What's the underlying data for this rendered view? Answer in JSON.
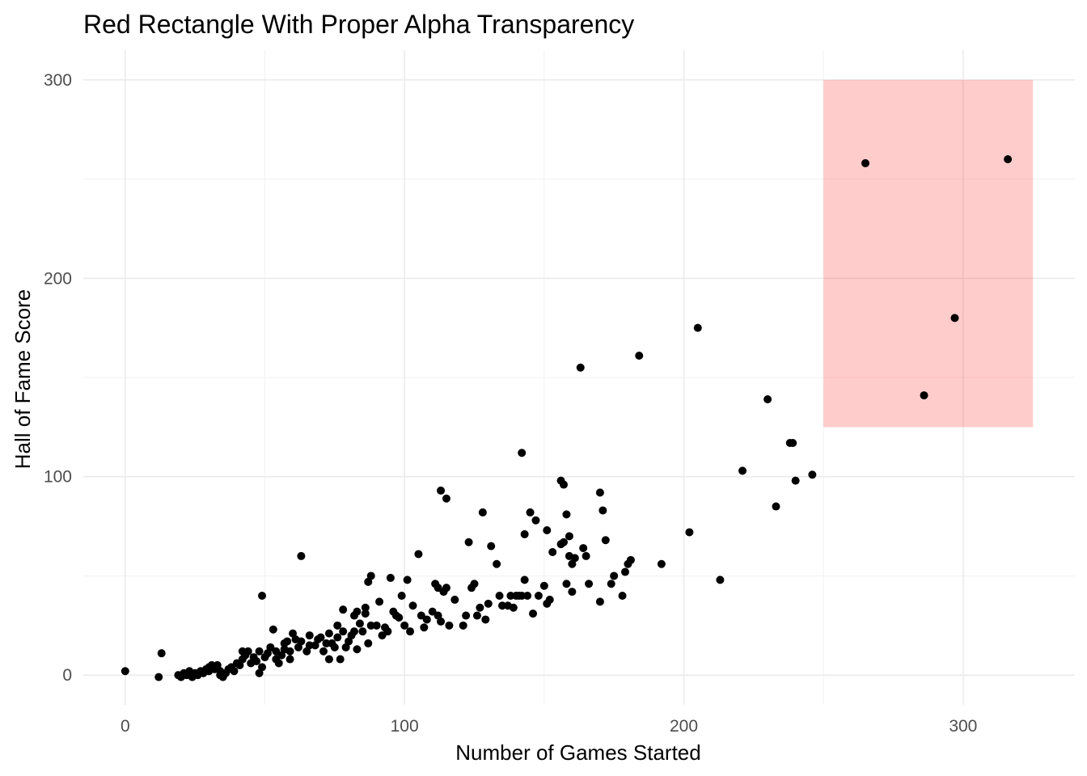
{
  "chart_data": {
    "type": "scatter",
    "title": "Red Rectangle With Proper Alpha Transparency",
    "xlabel": "Number of Games Started",
    "ylabel": "Hall of Fame Score",
    "xlim": [
      -15,
      340
    ],
    "ylim": [
      -15,
      315
    ],
    "x_ticks": [
      0,
      100,
      200,
      300
    ],
    "y_ticks": [
      0,
      100,
      200,
      300
    ],
    "x_ticks_labels": [
      "0",
      "100",
      "200",
      "300"
    ],
    "y_ticks_labels": [
      "0",
      "100",
      "200",
      "300"
    ],
    "grid": true,
    "legend": "none",
    "colors": {
      "point": "#000000",
      "rect_fill": "#ff0000",
      "rect_opacity": 0.2
    },
    "annotations": [
      {
        "type": "rect",
        "xmin": 250,
        "xmax": 325,
        "ymin": 125,
        "ymax": 300
      }
    ],
    "points": [
      [
        0,
        2
      ],
      [
        12,
        -1
      ],
      [
        13,
        11
      ],
      [
        19,
        0
      ],
      [
        20,
        -1
      ],
      [
        21,
        1
      ],
      [
        22,
        0
      ],
      [
        23,
        2
      ],
      [
        24,
        -1
      ],
      [
        25,
        1
      ],
      [
        26,
        0
      ],
      [
        27,
        2
      ],
      [
        28,
        1
      ],
      [
        29,
        3
      ],
      [
        30,
        2
      ],
      [
        30,
        4
      ],
      [
        31,
        5
      ],
      [
        32,
        3
      ],
      [
        33,
        5
      ],
      [
        34,
        2
      ],
      [
        34,
        0
      ],
      [
        35,
        -1
      ],
      [
        36,
        1
      ],
      [
        37,
        3
      ],
      [
        38,
        4
      ],
      [
        39,
        2
      ],
      [
        40,
        6
      ],
      [
        41,
        5
      ],
      [
        42,
        8
      ],
      [
        42,
        12
      ],
      [
        43,
        10
      ],
      [
        44,
        12
      ],
      [
        45,
        6
      ],
      [
        46,
        9
      ],
      [
        47,
        7
      ],
      [
        48,
        1
      ],
      [
        48,
        12
      ],
      [
        49,
        4
      ],
      [
        49,
        40
      ],
      [
        50,
        9
      ],
      [
        51,
        11
      ],
      [
        52,
        14
      ],
      [
        53,
        23
      ],
      [
        54,
        8
      ],
      [
        54,
        12
      ],
      [
        55,
        6
      ],
      [
        56,
        10
      ],
      [
        57,
        13
      ],
      [
        57,
        16
      ],
      [
        58,
        17
      ],
      [
        59,
        12
      ],
      [
        59,
        8
      ],
      [
        60,
        21
      ],
      [
        61,
        18
      ],
      [
        62,
        14
      ],
      [
        63,
        17
      ],
      [
        63,
        60
      ],
      [
        65,
        12
      ],
      [
        66,
        20
      ],
      [
        66,
        15
      ],
      [
        68,
        15
      ],
      [
        69,
        18
      ],
      [
        70,
        19
      ],
      [
        71,
        12
      ],
      [
        72,
        16
      ],
      [
        73,
        8
      ],
      [
        73,
        21
      ],
      [
        74,
        16
      ],
      [
        75,
        14
      ],
      [
        76,
        19
      ],
      [
        76,
        25
      ],
      [
        77,
        8
      ],
      [
        78,
        22
      ],
      [
        78,
        33
      ],
      [
        79,
        14
      ],
      [
        80,
        17
      ],
      [
        81,
        20
      ],
      [
        82,
        22
      ],
      [
        82,
        30
      ],
      [
        83,
        32
      ],
      [
        83,
        13
      ],
      [
        84,
        26
      ],
      [
        85,
        22
      ],
      [
        86,
        34
      ],
      [
        86,
        31
      ],
      [
        87,
        16
      ],
      [
        87,
        47
      ],
      [
        88,
        50
      ],
      [
        88,
        25
      ],
      [
        90,
        25
      ],
      [
        91,
        37
      ],
      [
        92,
        20
      ],
      [
        93,
        24
      ],
      [
        94,
        22
      ],
      [
        95,
        49
      ],
      [
        96,
        32
      ],
      [
        97,
        30
      ],
      [
        98,
        29
      ],
      [
        99,
        40
      ],
      [
        100,
        25
      ],
      [
        101,
        48
      ],
      [
        102,
        22
      ],
      [
        103,
        35
      ],
      [
        105,
        61
      ],
      [
        106,
        30
      ],
      [
        107,
        24
      ],
      [
        108,
        28
      ],
      [
        110,
        32
      ],
      [
        111,
        46
      ],
      [
        112,
        44
      ],
      [
        112,
        30
      ],
      [
        113,
        27
      ],
      [
        113,
        93
      ],
      [
        114,
        42
      ],
      [
        115,
        44
      ],
      [
        115,
        89
      ],
      [
        116,
        25
      ],
      [
        118,
        38
      ],
      [
        121,
        25
      ],
      [
        122,
        30
      ],
      [
        123,
        67
      ],
      [
        124,
        44
      ],
      [
        125,
        46
      ],
      [
        126,
        30
      ],
      [
        127,
        34
      ],
      [
        128,
        82
      ],
      [
        129,
        28
      ],
      [
        130,
        36
      ],
      [
        131,
        65
      ],
      [
        133,
        56
      ],
      [
        134,
        40
      ],
      [
        135,
        35
      ],
      [
        137,
        35
      ],
      [
        138,
        40
      ],
      [
        139,
        34
      ],
      [
        140,
        40
      ],
      [
        141,
        40
      ],
      [
        142,
        112
      ],
      [
        142,
        40
      ],
      [
        143,
        71
      ],
      [
        143,
        48
      ],
      [
        144,
        40
      ],
      [
        145,
        82
      ],
      [
        146,
        31
      ],
      [
        147,
        78
      ],
      [
        148,
        40
      ],
      [
        150,
        45
      ],
      [
        151,
        73
      ],
      [
        151,
        36
      ],
      [
        152,
        38
      ],
      [
        153,
        62
      ],
      [
        156,
        66
      ],
      [
        156,
        98
      ],
      [
        157,
        96
      ],
      [
        157,
        67
      ],
      [
        158,
        81
      ],
      [
        158,
        46
      ],
      [
        159,
        70
      ],
      [
        159,
        60
      ],
      [
        160,
        56
      ],
      [
        160,
        42
      ],
      [
        161,
        59
      ],
      [
        163,
        155
      ],
      [
        164,
        64
      ],
      [
        165,
        60
      ],
      [
        166,
        46
      ],
      [
        170,
        37
      ],
      [
        170,
        92
      ],
      [
        171,
        83
      ],
      [
        172,
        68
      ],
      [
        174,
        46
      ],
      [
        175,
        50
      ],
      [
        178,
        40
      ],
      [
        179,
        52
      ],
      [
        180,
        56
      ],
      [
        181,
        58
      ],
      [
        184,
        161
      ],
      [
        192,
        56
      ],
      [
        202,
        72
      ],
      [
        205,
        175
      ],
      [
        213,
        48
      ],
      [
        221,
        103
      ],
      [
        230,
        139
      ],
      [
        233,
        85
      ],
      [
        238,
        117
      ],
      [
        239,
        117
      ],
      [
        240,
        98
      ],
      [
        246,
        101
      ],
      [
        265,
        258
      ],
      [
        286,
        141
      ],
      [
        297,
        180
      ],
      [
        316,
        260
      ]
    ]
  }
}
